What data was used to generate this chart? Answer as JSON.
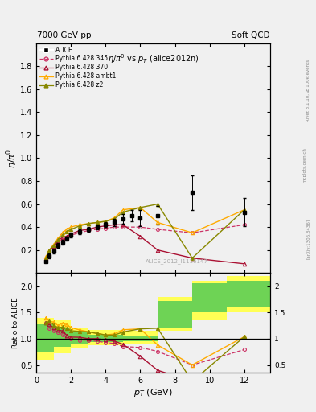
{
  "title_left": "7000 GeV pp",
  "title_right": "Soft QCD",
  "plot_title": "$\\eta/\\pi^0$ vs $p_T$ (alice2012n)",
  "ylabel_main": "$\\eta/\\pi^0$",
  "ylabel_ratio": "Ratio to ALICE",
  "xlabel": "$p_T$ (GeV)",
  "watermark": "ALICE_2012_I1116147",
  "right_label": "Rivet 3.1.10, ≥ 100k events",
  "right_label2": "[arXiv:1306.3436]",
  "mcplotslink": "mcplots.cern.ch",
  "alice_x": [
    0.55,
    0.75,
    1.0,
    1.25,
    1.5,
    1.75,
    2.0,
    2.5,
    3.0,
    3.5,
    4.0,
    4.5,
    5.0,
    5.5,
    6.0,
    7.0,
    9.0,
    12.0
  ],
  "alice_y": [
    0.1,
    0.15,
    0.19,
    0.24,
    0.27,
    0.3,
    0.33,
    0.36,
    0.38,
    0.4,
    0.42,
    0.44,
    0.47,
    0.5,
    0.48,
    0.5,
    0.7,
    0.53
  ],
  "alice_yerr": [
    0.01,
    0.02,
    0.02,
    0.02,
    0.02,
    0.02,
    0.02,
    0.02,
    0.02,
    0.02,
    0.02,
    0.03,
    0.04,
    0.05,
    0.07,
    0.08,
    0.15,
    0.12
  ],
  "p345_x": [
    0.55,
    0.75,
    1.0,
    1.25,
    1.5,
    1.75,
    2.0,
    2.5,
    3.0,
    3.5,
    4.0,
    4.5,
    5.0,
    6.0,
    7.0,
    9.0,
    12.0
  ],
  "p345_y": [
    0.13,
    0.18,
    0.22,
    0.27,
    0.29,
    0.31,
    0.33,
    0.35,
    0.37,
    0.38,
    0.39,
    0.4,
    0.4,
    0.4,
    0.38,
    0.35,
    0.42
  ],
  "p345_color": "#cc3366",
  "p370_x": [
    0.55,
    0.75,
    1.0,
    1.25,
    1.5,
    1.75,
    2.0,
    2.5,
    3.0,
    3.5,
    4.0,
    4.5,
    5.0,
    6.0,
    7.0,
    9.0,
    12.0
  ],
  "p370_y": [
    0.13,
    0.19,
    0.23,
    0.28,
    0.31,
    0.32,
    0.34,
    0.37,
    0.38,
    0.4,
    0.41,
    0.42,
    0.42,
    0.32,
    0.2,
    0.13,
    0.08
  ],
  "p370_color": "#aa1133",
  "pambt_x": [
    0.55,
    0.75,
    1.0,
    1.25,
    1.5,
    1.75,
    2.0,
    2.5,
    3.0,
    3.5,
    4.0,
    4.5,
    5.0,
    6.0,
    7.0,
    9.0,
    12.0
  ],
  "pambt_y": [
    0.14,
    0.2,
    0.25,
    0.3,
    0.35,
    0.38,
    0.4,
    0.42,
    0.43,
    0.44,
    0.45,
    0.48,
    0.55,
    0.57,
    0.44,
    0.35,
    0.55
  ],
  "pambt_color": "#ffaa00",
  "pz2_x": [
    0.55,
    0.75,
    1.0,
    1.25,
    1.5,
    1.75,
    2.0,
    2.5,
    3.0,
    3.5,
    4.0,
    4.5,
    5.0,
    6.0,
    7.0,
    9.0,
    12.0
  ],
  "pz2_y": [
    0.13,
    0.2,
    0.24,
    0.29,
    0.33,
    0.36,
    0.38,
    0.41,
    0.43,
    0.44,
    0.45,
    0.47,
    0.53,
    0.57,
    0.6,
    0.13,
    0.55
  ],
  "pz2_color": "#888800",
  "band_x_edges": [
    0.0,
    1.0,
    2.0,
    3.0,
    5.0,
    7.0,
    9.0,
    11.0,
    14.0
  ],
  "band_yellow_lo": [
    0.6,
    0.72,
    0.82,
    0.87,
    0.9,
    1.15,
    1.35,
    1.5
  ],
  "band_yellow_hi": [
    1.4,
    1.35,
    1.22,
    1.16,
    1.15,
    1.8,
    2.1,
    2.2
  ],
  "band_green_lo": [
    0.75,
    0.84,
    0.9,
    0.93,
    0.96,
    1.2,
    1.5,
    1.6
  ],
  "band_green_hi": [
    1.28,
    1.22,
    1.12,
    1.08,
    1.06,
    1.72,
    2.05,
    2.1
  ],
  "ylim_main": [
    0.0,
    2.0
  ],
  "yticks_main": [
    0.2,
    0.4,
    0.6,
    0.8,
    1.0,
    1.2,
    1.4,
    1.6,
    1.8
  ],
  "ylim_ratio": [
    0.35,
    2.25
  ],
  "yticks_ratio": [
    0.5,
    1.0,
    1.5,
    2.0
  ],
  "xlim": [
    0.0,
    13.5
  ],
  "bg_color": "#f0f0f0",
  "alice_color": "#000000"
}
